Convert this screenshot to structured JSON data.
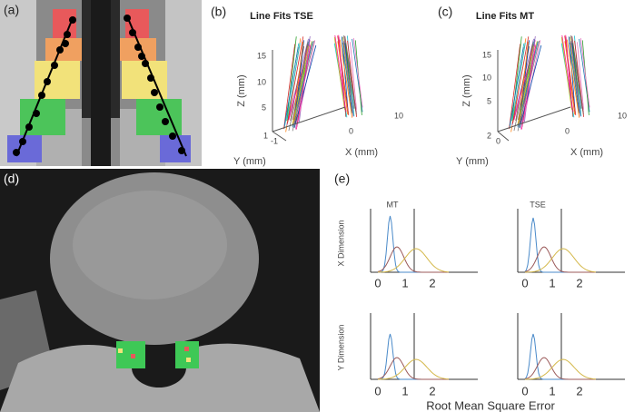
{
  "panels": {
    "a": {
      "label": "(a)"
    },
    "b": {
      "label": "(b)",
      "title": "Line Fits TSE",
      "z_label": "Z (mm)",
      "y_label": "Y (mm)",
      "x_label": "X (mm)",
      "z_ticks": [
        "15",
        "10",
        "5"
      ],
      "y_ticks": [
        "1",
        "-1"
      ],
      "x_ticks": [
        "0",
        "10"
      ]
    },
    "c": {
      "label": "(c)",
      "title": "Line Fits MT",
      "z_label": "Z (mm)",
      "y_label": "Y (mm)",
      "x_label": "X (mm)",
      "z_ticks": [
        "15",
        "10",
        "5"
      ],
      "y_ticks": [
        "2",
        "0"
      ],
      "x_ticks": [
        "0",
        "10"
      ]
    },
    "d": {
      "label": "(d)"
    },
    "e": {
      "label": "(e)",
      "columns": [
        "MT",
        "TSE"
      ],
      "rows": [
        "X Dimension",
        "Y Dimension"
      ],
      "x_ticks": [
        "0",
        "1",
        "2"
      ],
      "x_label": "Root Mean Square Error"
    }
  }
}
